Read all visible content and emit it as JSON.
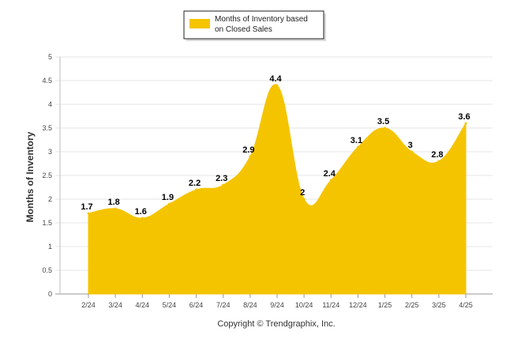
{
  "chart_data": {
    "type": "area",
    "title": "",
    "xlabel": "",
    "ylabel": "Months of Inventory",
    "ylim": [
      0,
      5
    ],
    "yticks": [
      "0",
      "0.5",
      "1",
      "1.5",
      "2",
      "2.5",
      "3",
      "3.5",
      "4",
      "4.5",
      "5"
    ],
    "categories": [
      "2/24",
      "3/24",
      "4/24",
      "5/24",
      "6/24",
      "7/24",
      "8/24",
      "9/24",
      "10/24",
      "11/24",
      "12/24",
      "1/25",
      "2/25",
      "3/25",
      "4/25"
    ],
    "series": [
      {
        "name": "Months of Inventory based on Closed Sales",
        "values": [
          1.7,
          1.8,
          1.6,
          1.9,
          2.2,
          2.3,
          2.9,
          4.4,
          2,
          2.4,
          3.1,
          3.5,
          3,
          2.8,
          3.6
        ],
        "labels": [
          "1.7",
          "1.8",
          "1.6",
          "1.9",
          "2.2",
          "2.3",
          "2.9",
          "4.4",
          "2",
          "2.4",
          "3.1",
          "3.5",
          "3",
          "2.8",
          "3.6"
        ],
        "color": "#F5C400"
      }
    ],
    "grid": true,
    "legend": {
      "position": "top-center",
      "lines": [
        "Months of Inventory based",
        "on Closed Sales"
      ]
    }
  },
  "footer": {
    "copyright": "Copyright © Trendgraphix, Inc."
  }
}
